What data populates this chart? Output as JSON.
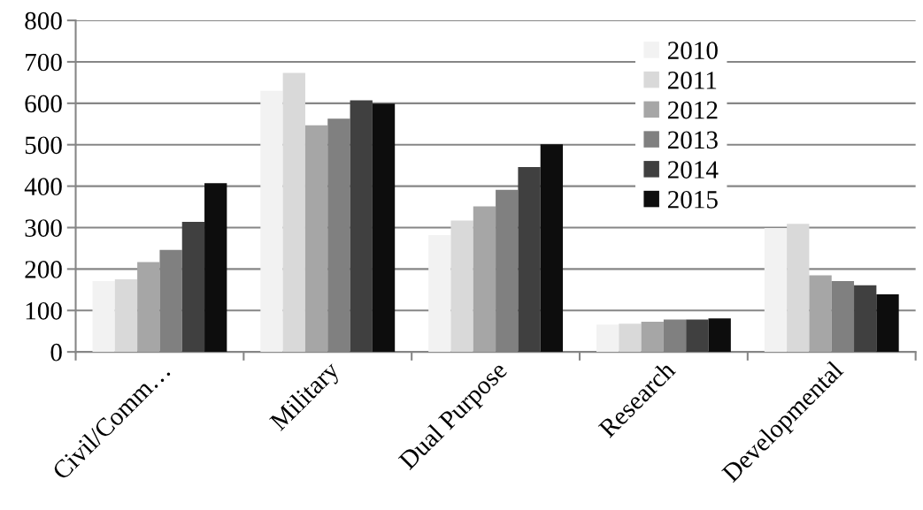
{
  "chart_data": {
    "type": "bar",
    "categories": [
      "Civil/Comm…",
      "Military",
      "Dual Purpose",
      "Research",
      "Developmental"
    ],
    "series": [
      {
        "name": "2010",
        "color": "#f2f2f2",
        "values": [
          171,
          630,
          282,
          66,
          299
        ]
      },
      {
        "name": "2011",
        "color": "#d9d9d9",
        "values": [
          175,
          673,
          317,
          68,
          309
        ]
      },
      {
        "name": "2012",
        "color": "#a6a6a6",
        "values": [
          217,
          547,
          351,
          73,
          185
        ]
      },
      {
        "name": "2013",
        "color": "#808080",
        "values": [
          246,
          563,
          391,
          78,
          171
        ]
      },
      {
        "name": "2014",
        "color": "#404040",
        "values": [
          314,
          607,
          446,
          78,
          161
        ]
      },
      {
        "name": "2015",
        "color": "#0d0d0d",
        "values": [
          407,
          599,
          501,
          81,
          139
        ]
      }
    ],
    "ylim": [
      0,
      800
    ],
    "yticks": [
      0,
      100,
      200,
      300,
      400,
      500,
      600,
      700,
      800
    ],
    "grid": "y",
    "legend": "top right"
  }
}
